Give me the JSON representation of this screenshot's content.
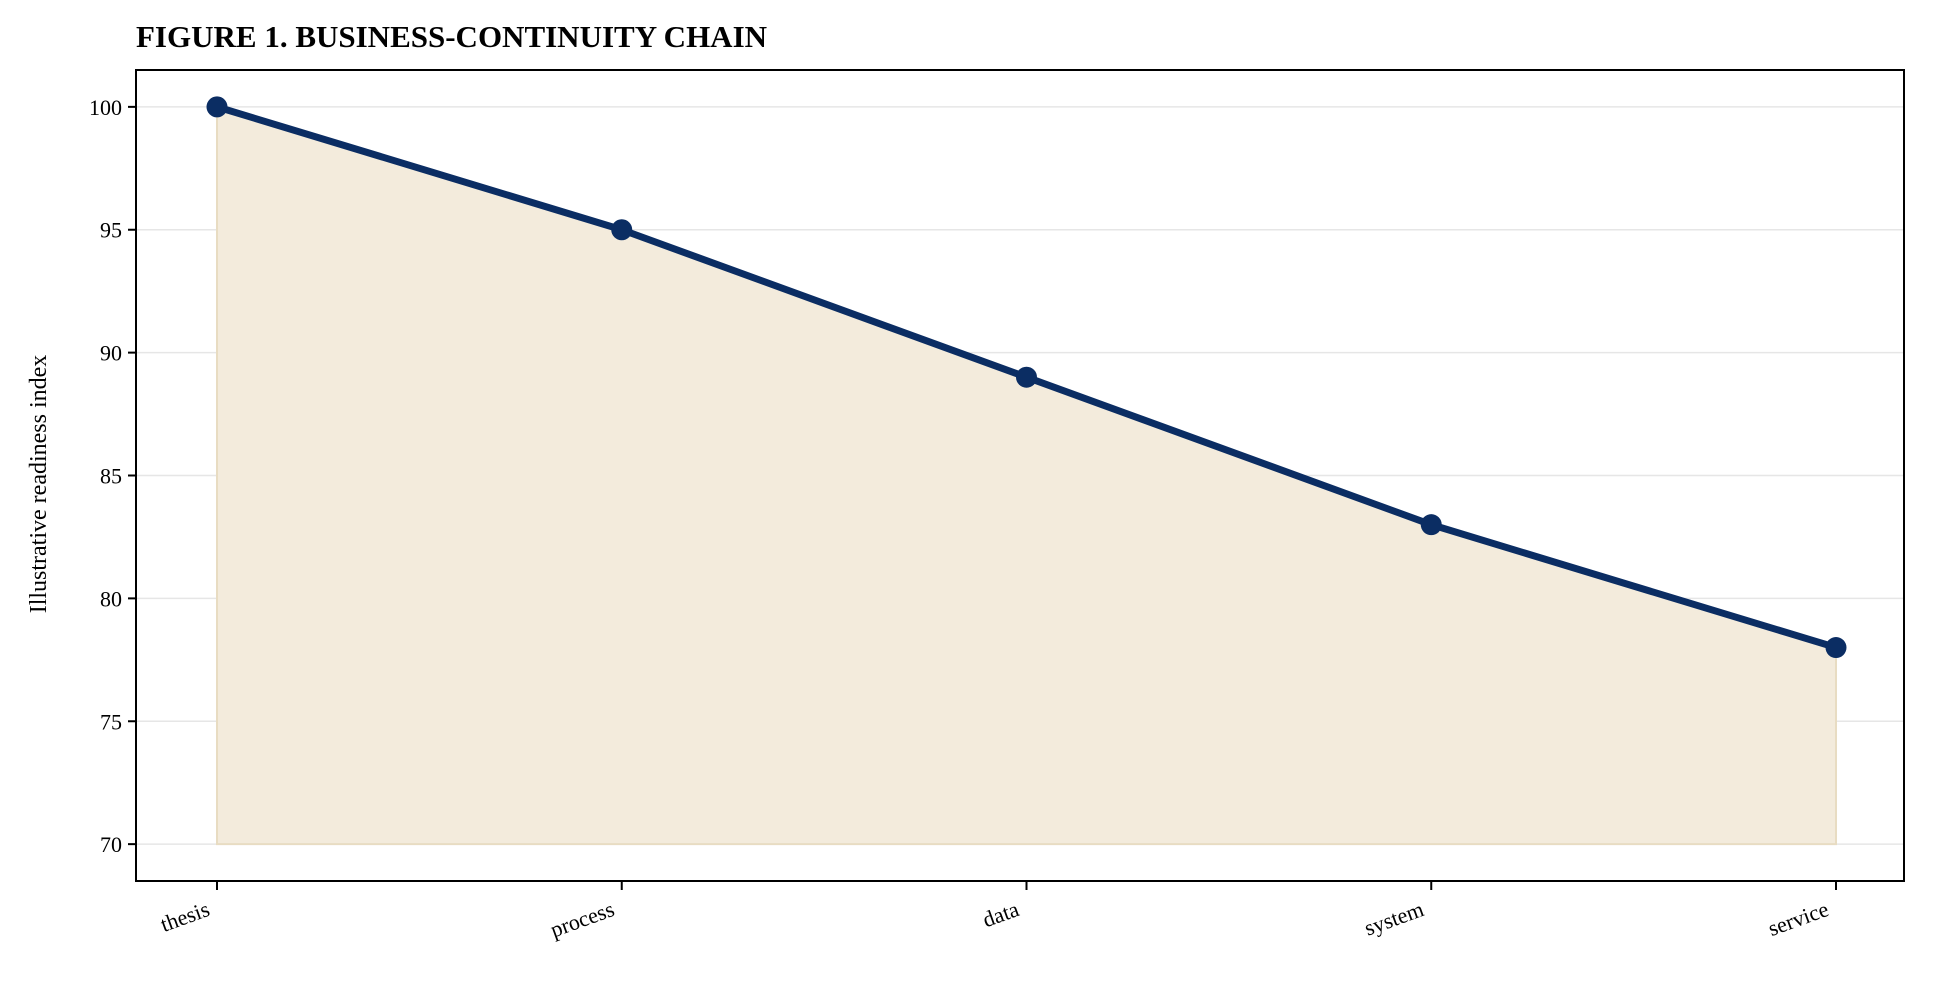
{
  "chart_data": {
    "type": "area",
    "title": "FIGURE 1. BUSINESS-CONTINUITY CHAIN",
    "xlabel": "",
    "ylabel": "Illustrative readiness index",
    "categories": [
      "thesis",
      "process",
      "data",
      "system",
      "service"
    ],
    "values": [
      100,
      95,
      89,
      83,
      78
    ],
    "fill_baseline": 70,
    "ylim": [
      68.5,
      101.5
    ],
    "yticks": [
      70,
      75,
      80,
      85,
      90,
      95,
      100
    ],
    "grid": "horizontal",
    "legend": "none",
    "colors": {
      "line": "#0b2d63",
      "fill": "#f3ebdc",
      "fill_edge": "#e8dcc2",
      "grid": "#e6e6e6"
    }
  }
}
